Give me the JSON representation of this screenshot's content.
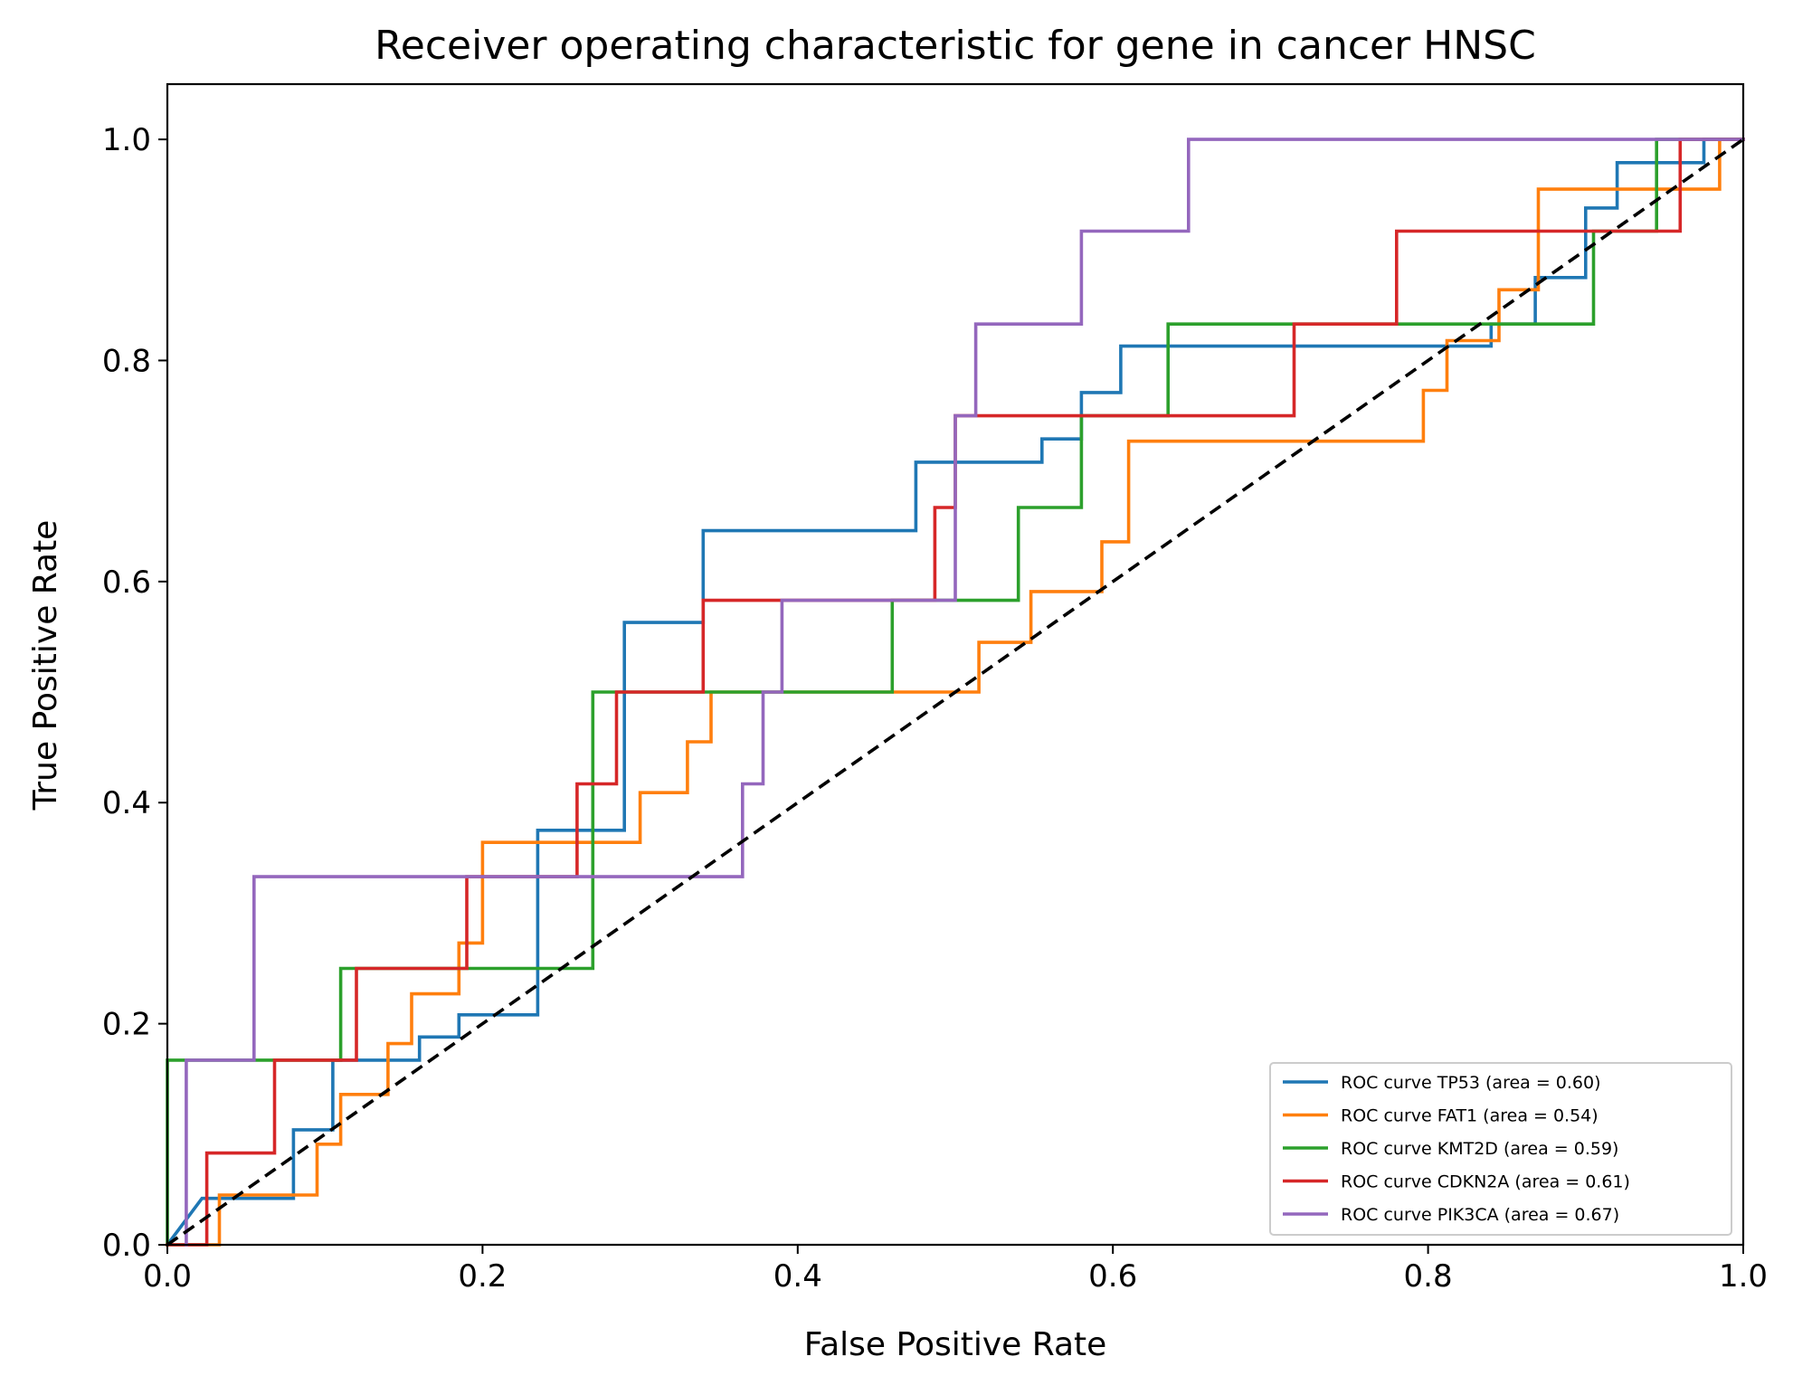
{
  "chart_data": {
    "type": "line",
    "title": "Receiver operating characteristic for gene in cancer HNSC",
    "xlabel": "False Positive Rate",
    "ylabel": "True Positive Rate",
    "xlim": [
      0.0,
      1.0
    ],
    "ylim": [
      0.0,
      1.05
    ],
    "xticks": [
      0.0,
      0.2,
      0.4,
      0.6,
      0.8,
      1.0
    ],
    "xtick_labels": [
      "0.0",
      "0.2",
      "0.4",
      "0.6",
      "0.8",
      "1.0"
    ],
    "yticks": [
      0.0,
      0.2,
      0.4,
      0.6,
      0.8,
      1.0
    ],
    "ytick_labels": [
      "0.0",
      "0.2",
      "0.4",
      "0.6",
      "0.8",
      "1.0"
    ],
    "grid": false,
    "legend_position": "lower-right",
    "series": [
      {
        "name": "ROC curve TP53 (area = 0.60)",
        "color": "#1f77b4",
        "x": [
          0.0,
          0.022,
          0.022,
          0.08,
          0.08,
          0.105,
          0.105,
          0.16,
          0.16,
          0.185,
          0.185,
          0.235,
          0.235,
          0.29,
          0.29,
          0.34,
          0.34,
          0.475,
          0.475,
          0.555,
          0.555,
          0.58,
          0.58,
          0.605,
          0.605,
          0.84,
          0.84,
          0.868,
          0.868,
          0.9,
          0.9,
          0.92,
          0.92,
          0.975,
          0.975,
          1.0
        ],
        "y": [
          0.0,
          0.042,
          0.042,
          0.042,
          0.104,
          0.104,
          0.167,
          0.167,
          0.188,
          0.188,
          0.208,
          0.208,
          0.375,
          0.375,
          0.563,
          0.563,
          0.646,
          0.646,
          0.708,
          0.708,
          0.729,
          0.729,
          0.771,
          0.771,
          0.813,
          0.813,
          0.833,
          0.833,
          0.875,
          0.875,
          0.938,
          0.938,
          0.979,
          0.979,
          1.0,
          1.0
        ]
      },
      {
        "name": "ROC curve FAT1 (area = 0.54)",
        "color": "#ff7f0e",
        "x": [
          0.0,
          0.028,
          0.028,
          0.033,
          0.033,
          0.095,
          0.095,
          0.11,
          0.11,
          0.14,
          0.14,
          0.155,
          0.155,
          0.185,
          0.185,
          0.2,
          0.2,
          0.3,
          0.3,
          0.33,
          0.33,
          0.345,
          0.345,
          0.46,
          0.46,
          0.515,
          0.515,
          0.548,
          0.548,
          0.593,
          0.593,
          0.61,
          0.61,
          0.797,
          0.797,
          0.812,
          0.812,
          0.845,
          0.845,
          0.87,
          0.87,
          0.955,
          0.955,
          0.985,
          0.985,
          1.0
        ],
        "y": [
          0.0,
          0.0,
          0.0,
          0.0,
          0.045,
          0.045,
          0.091,
          0.091,
          0.136,
          0.136,
          0.182,
          0.182,
          0.227,
          0.227,
          0.273,
          0.273,
          0.364,
          0.364,
          0.409,
          0.409,
          0.455,
          0.455,
          0.5,
          0.5,
          0.5,
          0.5,
          0.545,
          0.545,
          0.591,
          0.591,
          0.636,
          0.636,
          0.727,
          0.727,
          0.773,
          0.773,
          0.818,
          0.818,
          0.864,
          0.864,
          0.955,
          0.955,
          0.955,
          0.955,
          1.0,
          1.0
        ]
      },
      {
        "name": "ROC curve KMT2D (area = 0.59)",
        "color": "#2ca02c",
        "x": [
          0.0,
          0.0,
          0.11,
          0.11,
          0.27,
          0.27,
          0.46,
          0.46,
          0.54,
          0.54,
          0.58,
          0.58,
          0.635,
          0.635,
          0.905,
          0.905,
          0.945,
          0.945,
          1.0
        ],
        "y": [
          0.0,
          0.167,
          0.167,
          0.25,
          0.25,
          0.5,
          0.5,
          0.583,
          0.583,
          0.667,
          0.667,
          0.75,
          0.75,
          0.833,
          0.833,
          0.917,
          0.917,
          1.0,
          1.0
        ]
      },
      {
        "name": "ROC curve CDKN2A (area = 0.61)",
        "color": "#d62728",
        "x": [
          0.0,
          0.025,
          0.025,
          0.068,
          0.068,
          0.12,
          0.12,
          0.19,
          0.19,
          0.26,
          0.26,
          0.285,
          0.285,
          0.34,
          0.34,
          0.487,
          0.487,
          0.5,
          0.5,
          0.715,
          0.715,
          0.78,
          0.78,
          0.96,
          0.96,
          1.0
        ],
        "y": [
          0.0,
          0.0,
          0.083,
          0.083,
          0.167,
          0.167,
          0.25,
          0.25,
          0.333,
          0.333,
          0.417,
          0.417,
          0.5,
          0.5,
          0.583,
          0.583,
          0.667,
          0.667,
          0.75,
          0.75,
          0.833,
          0.833,
          0.917,
          0.917,
          1.0,
          1.0
        ]
      },
      {
        "name": "ROC curve PIK3CA (area = 0.67)",
        "color": "#9467bd",
        "x": [
          0.012,
          0.012,
          0.055,
          0.055,
          0.365,
          0.365,
          0.378,
          0.378,
          0.39,
          0.39,
          0.5,
          0.5,
          0.513,
          0.513,
          0.58,
          0.58,
          0.648,
          0.648,
          1.0
        ],
        "y": [
          0.0,
          0.167,
          0.167,
          0.333,
          0.333,
          0.417,
          0.417,
          0.5,
          0.5,
          0.583,
          0.583,
          0.75,
          0.75,
          0.833,
          0.833,
          0.917,
          0.917,
          1.0,
          1.0
        ]
      }
    ],
    "reference_line": {
      "color": "#000000",
      "style": "dashed",
      "x": [
        0.0,
        1.0
      ],
      "y": [
        0.0,
        1.0
      ]
    }
  }
}
